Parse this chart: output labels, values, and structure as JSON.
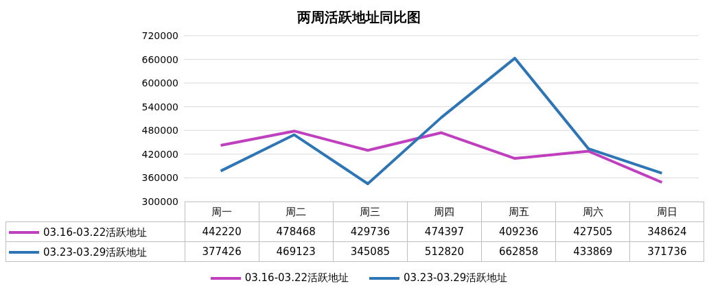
{
  "chart_data": {
    "type": "line",
    "title": "两周活跃地址同比图",
    "categories": [
      "周一",
      "周二",
      "周三",
      "周四",
      "周五",
      "周六",
      "周日"
    ],
    "series": [
      {
        "name": "03.16-03.22活跃地址",
        "color": "#bf3fbf",
        "values": [
          442220,
          478468,
          429736,
          474397,
          409236,
          427505,
          348624
        ]
      },
      {
        "name": "03.23-03.29活跃地址",
        "color": "#2e75b6",
        "values": [
          377426,
          469123,
          345085,
          512820,
          662858,
          433869,
          371736
        ]
      }
    ],
    "ylim": [
      300000,
      720000
    ],
    "yticks": [
      300000,
      360000,
      420000,
      480000,
      540000,
      600000,
      660000,
      720000
    ],
    "grid": "y",
    "legend": "bottom",
    "data_labels": true,
    "marker": "none",
    "line_style": "solid"
  }
}
